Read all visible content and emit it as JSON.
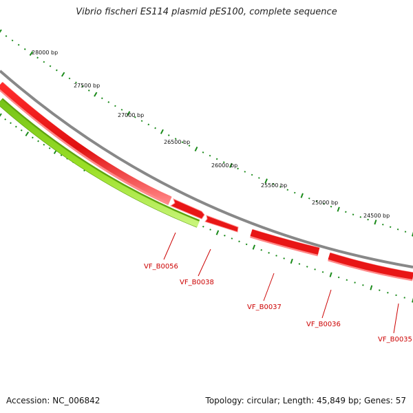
{
  "title": "Vibrio fischeri ES114 plasmid pES100, complete sequence",
  "accession_text": "Accession: NC_006842",
  "summary_text": "Topology: circular; Length: 45,849 bp; Genes: 57",
  "colors": {
    "gene_forward": "#e61b1b",
    "gene_reverse": "#99dd22",
    "backbone": "#8a8a8a",
    "tick": "#1a8a1a",
    "label": "#cc0000"
  },
  "scale_labels": [
    "28000 bp",
    "27500 bp",
    "27000 bp",
    "26500 bp",
    "26000 bp",
    "25500 bp",
    "25000 bp",
    "24500 bp"
  ],
  "genes": [
    {
      "id": "VF_B0056",
      "strand": "reverse"
    },
    {
      "id": "VF_B0038",
      "strand": "forward"
    },
    {
      "id": "VF_B0037",
      "strand": "forward"
    },
    {
      "id": "VF_B0036",
      "strand": "forward"
    },
    {
      "id": "VF_B0035",
      "strand": "forward"
    }
  ]
}
